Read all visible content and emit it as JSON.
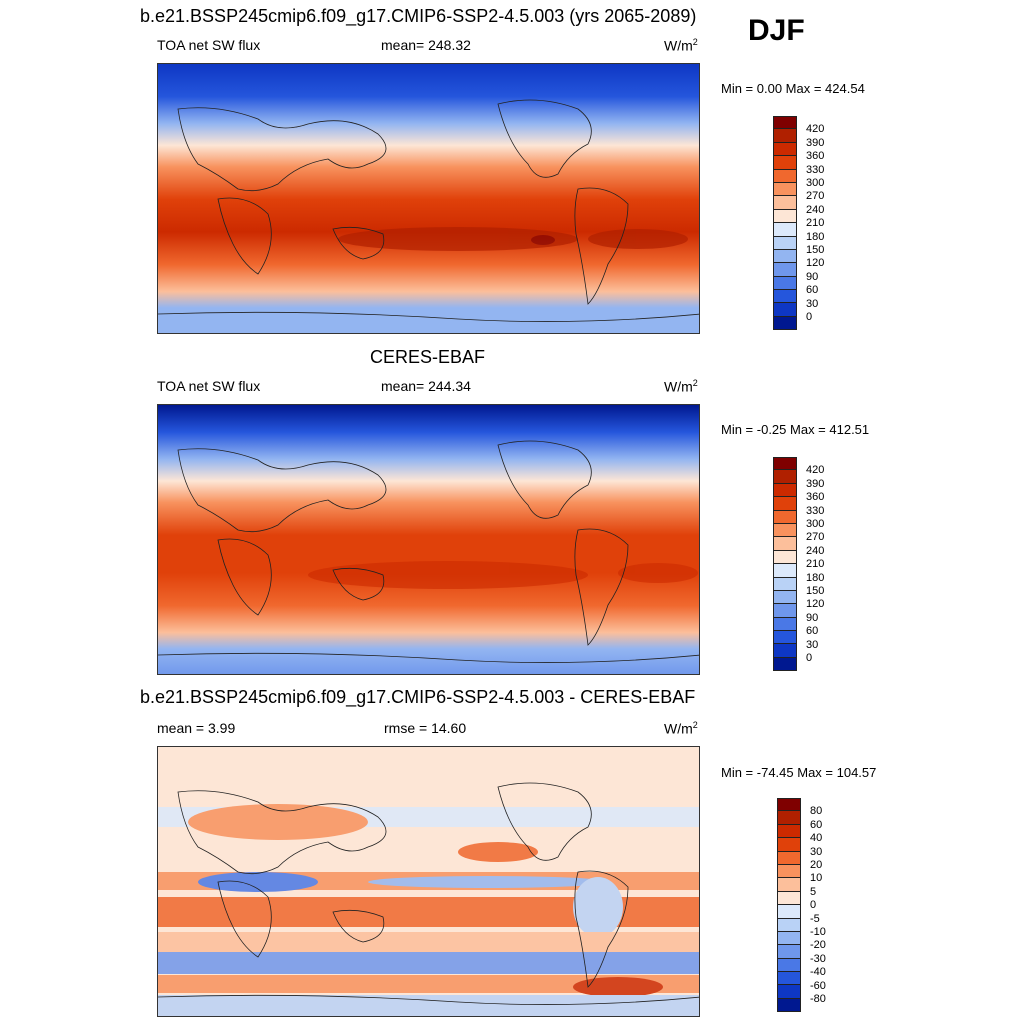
{
  "season": "DJF",
  "units_prefix": "W/m",
  "units_exp": "2",
  "top": {
    "title": "b.e21.BSSP245cmip6.f09_g17.CMIP6-SSP2-4.5.003 (yrs 2065-2089)",
    "left": "TOA net SW flux",
    "mid": "mean= 248.32",
    "minmax": "Min =   0.00 Max = 424.54"
  },
  "middle": {
    "title": "CERES-EBAF",
    "left": "TOA net SW flux",
    "mid": "mean= 244.34",
    "minmax": "Min =  -0.25 Max = 412.51"
  },
  "bottom": {
    "title": "b.e21.BSSP245cmip6.f09_g17.CMIP6-SSP2-4.5.003 - CERES-EBAF",
    "left": "mean =   3.99",
    "mid": "rmse =  14.60",
    "minmax": "Min = -74.45 Max = 104.57"
  },
  "colorbar_abs": {
    "labels": [
      "420",
      "390",
      "360",
      "330",
      "300",
      "270",
      "240",
      "210",
      "180",
      "150",
      "120",
      "90",
      "60",
      "30",
      "0"
    ],
    "colors": [
      "#7f0000",
      "#b02000",
      "#cc2a00",
      "#e0410a",
      "#f0682e",
      "#f8925e",
      "#fcbf9b",
      "#fde6d6",
      "#dce9fb",
      "#b9d2f6",
      "#93b5f1",
      "#6f97ec",
      "#4a78e6",
      "#2556dc",
      "#0e37c4",
      "#001890"
    ]
  },
  "colorbar_diff": {
    "labels": [
      "80",
      "60",
      "40",
      "30",
      "20",
      "10",
      "5",
      "0",
      "-5",
      "-10",
      "-20",
      "-30",
      "-40",
      "-60",
      "-80"
    ],
    "colors": [
      "#7f0000",
      "#b02000",
      "#cc2a00",
      "#e0410a",
      "#f0682e",
      "#f8925e",
      "#fcbf9b",
      "#fde6d6",
      "#dce9fb",
      "#b9d2f6",
      "#93b5f1",
      "#6f97ec",
      "#4a78e6",
      "#2556dc",
      "#0e37c4",
      "#001890"
    ]
  }
}
